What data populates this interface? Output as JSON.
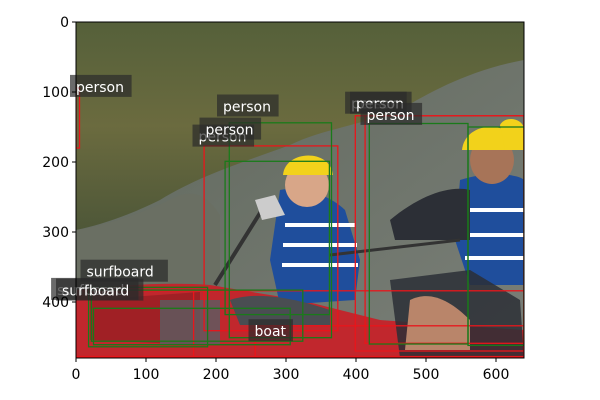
{
  "figure": {
    "x_ticks": [
      "0",
      "100",
      "200",
      "300",
      "400",
      "500",
      "600"
    ],
    "y_ticks": [
      "0",
      "100",
      "200",
      "300",
      "400"
    ],
    "x_range": [
      0,
      640
    ],
    "y_range": [
      0,
      480
    ],
    "grid": false,
    "image_description_colors": {
      "scene_dark": "#3f4a2a",
      "water": "#6f7368",
      "kayak_red": "#c1272d",
      "vest_blue": "#1f4e9c",
      "helmet_yellow": "#f2d21b"
    }
  },
  "detections": {
    "pred_color": "#e8161b",
    "gt_color": "#1a7a1a",
    "labels": [
      {
        "text": "person",
        "x": 0,
        "y": 97
      },
      {
        "text": "person",
        "x": 210,
        "y": 125
      },
      {
        "text": "person",
        "x": 175,
        "y": 168
      },
      {
        "text": "person",
        "x": 185,
        "y": 158
      },
      {
        "text": "person",
        "x": 393,
        "y": 121
      },
      {
        "text": "person",
        "x": 400,
        "y": 121
      },
      {
        "text": "person",
        "x": 415,
        "y": 137
      },
      {
        "text": "surfboard",
        "x": 15,
        "y": 361
      },
      {
        "text": "surfboard",
        "x": -27,
        "y": 387
      },
      {
        "text": "surfboard",
        "x": -20,
        "y": 388
      },
      {
        "text": "boat",
        "x": 255,
        "y": 446
      }
    ],
    "pred_boxes": [
      {
        "x0": 0,
        "y0": 94,
        "x1": 5,
        "y1": 180
      },
      {
        "x0": 183,
        "y0": 177,
        "x1": 374,
        "y1": 441
      },
      {
        "x0": 413,
        "y0": 134,
        "x1": 640,
        "y1": 459
      },
      {
        "x0": 399,
        "y0": 134,
        "x1": 640,
        "y1": 470
      },
      {
        "x0": 0,
        "y0": 384,
        "x1": 168,
        "y1": 478
      },
      {
        "x0": 0,
        "y0": 384,
        "x1": 640,
        "y1": 478
      },
      {
        "x0": 256,
        "y0": 434,
        "x1": 640,
        "y1": 478
      }
    ],
    "gt_boxes": [
      {
        "x0": 213,
        "y0": 199,
        "x1": 362,
        "y1": 418
      },
      {
        "x0": 219,
        "y0": 144,
        "x1": 365,
        "y1": 451
      },
      {
        "x0": 419,
        "y0": 145,
        "x1": 560,
        "y1": 460
      },
      {
        "x0": 560,
        "y0": 150,
        "x1": 640,
        "y1": 462
      },
      {
        "x0": 25,
        "y0": 409,
        "x1": 306,
        "y1": 461
      },
      {
        "x0": 22,
        "y0": 383,
        "x1": 324,
        "y1": 456
      },
      {
        "x0": 18,
        "y0": 379,
        "x1": 188,
        "y1": 464
      }
    ]
  }
}
